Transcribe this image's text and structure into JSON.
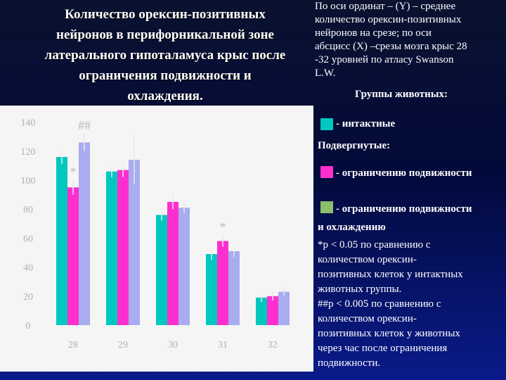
{
  "title_lines": [
    "Количество орексин-позитивных",
    "нейронов в перифорникальной зоне",
    "латерального гипоталамуса крыс после",
    "ограничения подвижности и",
    "охлаждения."
  ],
  "description_lines": [
    "По оси ординат – (Y) – среднее",
    "количество орексин-позитивных",
    "нейронов на срезе; по оси",
    "абсцисс (X) –срезы мозга крыс 28",
    "-32 уровней по атласу Swanson",
    "L.W."
  ],
  "groups_heading": "Группы животных:",
  "legend": {
    "intact": "- интактные",
    "subjected_label": "Подвергнутые:",
    "restraint": "- ограничению подвижности",
    "restraint_cooling_line1": "- ограничению подвижности",
    "restraint_cooling_line2": "и охлаждению"
  },
  "notes_lines": [
    "*р < 0.05 по сравнению с",
    "количеством орексин-",
    "позитивных клеток у интактных",
    "животных группы.",
    "##р < 0.005 по сравнению с",
    "количеством орексин-",
    "позитивных клеток у животных",
    "через час после ограничения",
    "подвижности."
  ],
  "colors": {
    "intact": "#00c8c0",
    "restraint": "#ff2fcf",
    "restraint_cooling": "#a8acf0",
    "legend_cooling_swatch": "#8cbf6a",
    "panel": "#f5f5f5",
    "axis_text": "#b0b0b0"
  },
  "chart_data": {
    "type": "bar",
    "title": "",
    "xlabel": "",
    "ylabel": "",
    "categories": [
      "28",
      "29",
      "30",
      "31",
      "32"
    ],
    "ylim": [
      0,
      140
    ],
    "yticks": [
      0,
      20,
      40,
      60,
      80,
      100,
      120,
      140
    ],
    "grid": false,
    "series": [
      {
        "key": "intact",
        "values": [
          116,
          106,
          76,
          49,
          19
        ],
        "errors": [
          5,
          4,
          4,
          4,
          3
        ]
      },
      {
        "key": "restraint",
        "values": [
          95,
          107,
          85,
          58,
          20
        ],
        "errors": [
          5,
          5,
          5,
          4,
          3
        ]
      },
      {
        "key": "restraint_cooling",
        "values": [
          126,
          114,
          81,
          51,
          23
        ],
        "errors": [
          6,
          17,
          4,
          4,
          3
        ]
      }
    ],
    "annotations": [
      {
        "text": "*",
        "category": "28",
        "series": "restraint"
      },
      {
        "text": "##",
        "category": "28",
        "series": "restraint_cooling"
      },
      {
        "text": "*",
        "category": "31",
        "series": "restraint"
      }
    ]
  }
}
